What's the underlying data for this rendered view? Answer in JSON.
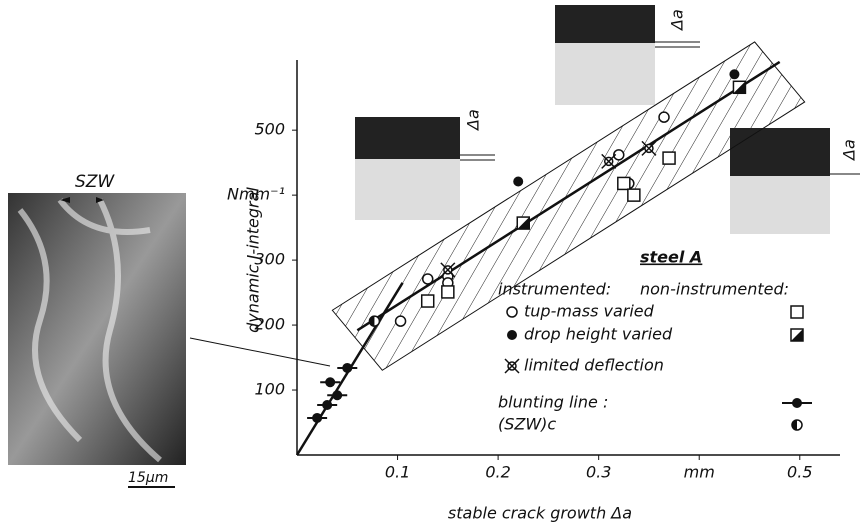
{
  "chart_data": {
    "type": "scatter",
    "x_label": "stable crack growth Δa",
    "y_label": "dynamic J-integral",
    "xlim": [
      0,
      0.54
    ],
    "ylim": [
      0,
      608
    ],
    "xticks": [
      0.1,
      0.2,
      0.3,
      {
        "value": 0.4,
        "label": "mm"
      },
      0.5
    ],
    "yticks": [
      100,
      200,
      300,
      {
        "value": 400,
        "label": "Nmm⁻¹"
      },
      500
    ],
    "legend_title": "steel A",
    "legend_groups": [
      "instrumented:",
      "non-instrumented:"
    ],
    "series": [
      {
        "name": "tup-mass varied",
        "instrumented": {
          "marker": "circle-open",
          "x": [
            0.13,
            0.15,
            0.15,
            0.103,
            0.32,
            0.33,
            0.365
          ],
          "values": [
            271,
            275,
            265,
            206,
            462,
            418,
            520
          ]
        },
        "non_instrumented": {
          "marker": "square-open",
          "x": [
            0.13,
            0.15,
            0.325,
            0.335,
            0.37
          ],
          "values": [
            237,
            251,
            418,
            400,
            457
          ]
        }
      },
      {
        "name": "drop height varied",
        "instrumented": {
          "marker": "circle-filled",
          "x": [
            0.22,
            0.435
          ],
          "values": [
            421,
            586
          ]
        },
        "non_instrumented": {
          "marker": "square-half",
          "x": [
            0.225,
            0.44
          ],
          "values": [
            357,
            566
          ]
        }
      },
      {
        "name": "limited deflection",
        "instrumented": {
          "marker": "circle-star",
          "x": [
            0.31,
            0.35,
            0.15
          ],
          "values": [
            452,
            472,
            285
          ]
        }
      },
      {
        "name": "blunting line :",
        "instrumented": {
          "marker": "circle-filled",
          "x": [
            0.02,
            0.03,
            0.033,
            0.04,
            0.05
          ],
          "values": [
            57,
            77,
            112,
            92,
            134
          ]
        },
        "line": {
          "x": [
            0,
            0.105
          ],
          "values": [
            0,
            265
          ]
        }
      },
      {
        "name": "(SZW)c",
        "instrumented": {
          "marker": "circle-half",
          "x": [
            0.077
          ],
          "values": [
            206
          ]
        }
      }
    ],
    "fit": {
      "x": [
        0.06,
        0.48
      ],
      "values": [
        192,
        605
      ]
    }
  },
  "micrograph": {
    "label": "SZW",
    "scale_bar": "15μm"
  },
  "insets": [
    "Δa",
    "Δa",
    "Δa"
  ]
}
